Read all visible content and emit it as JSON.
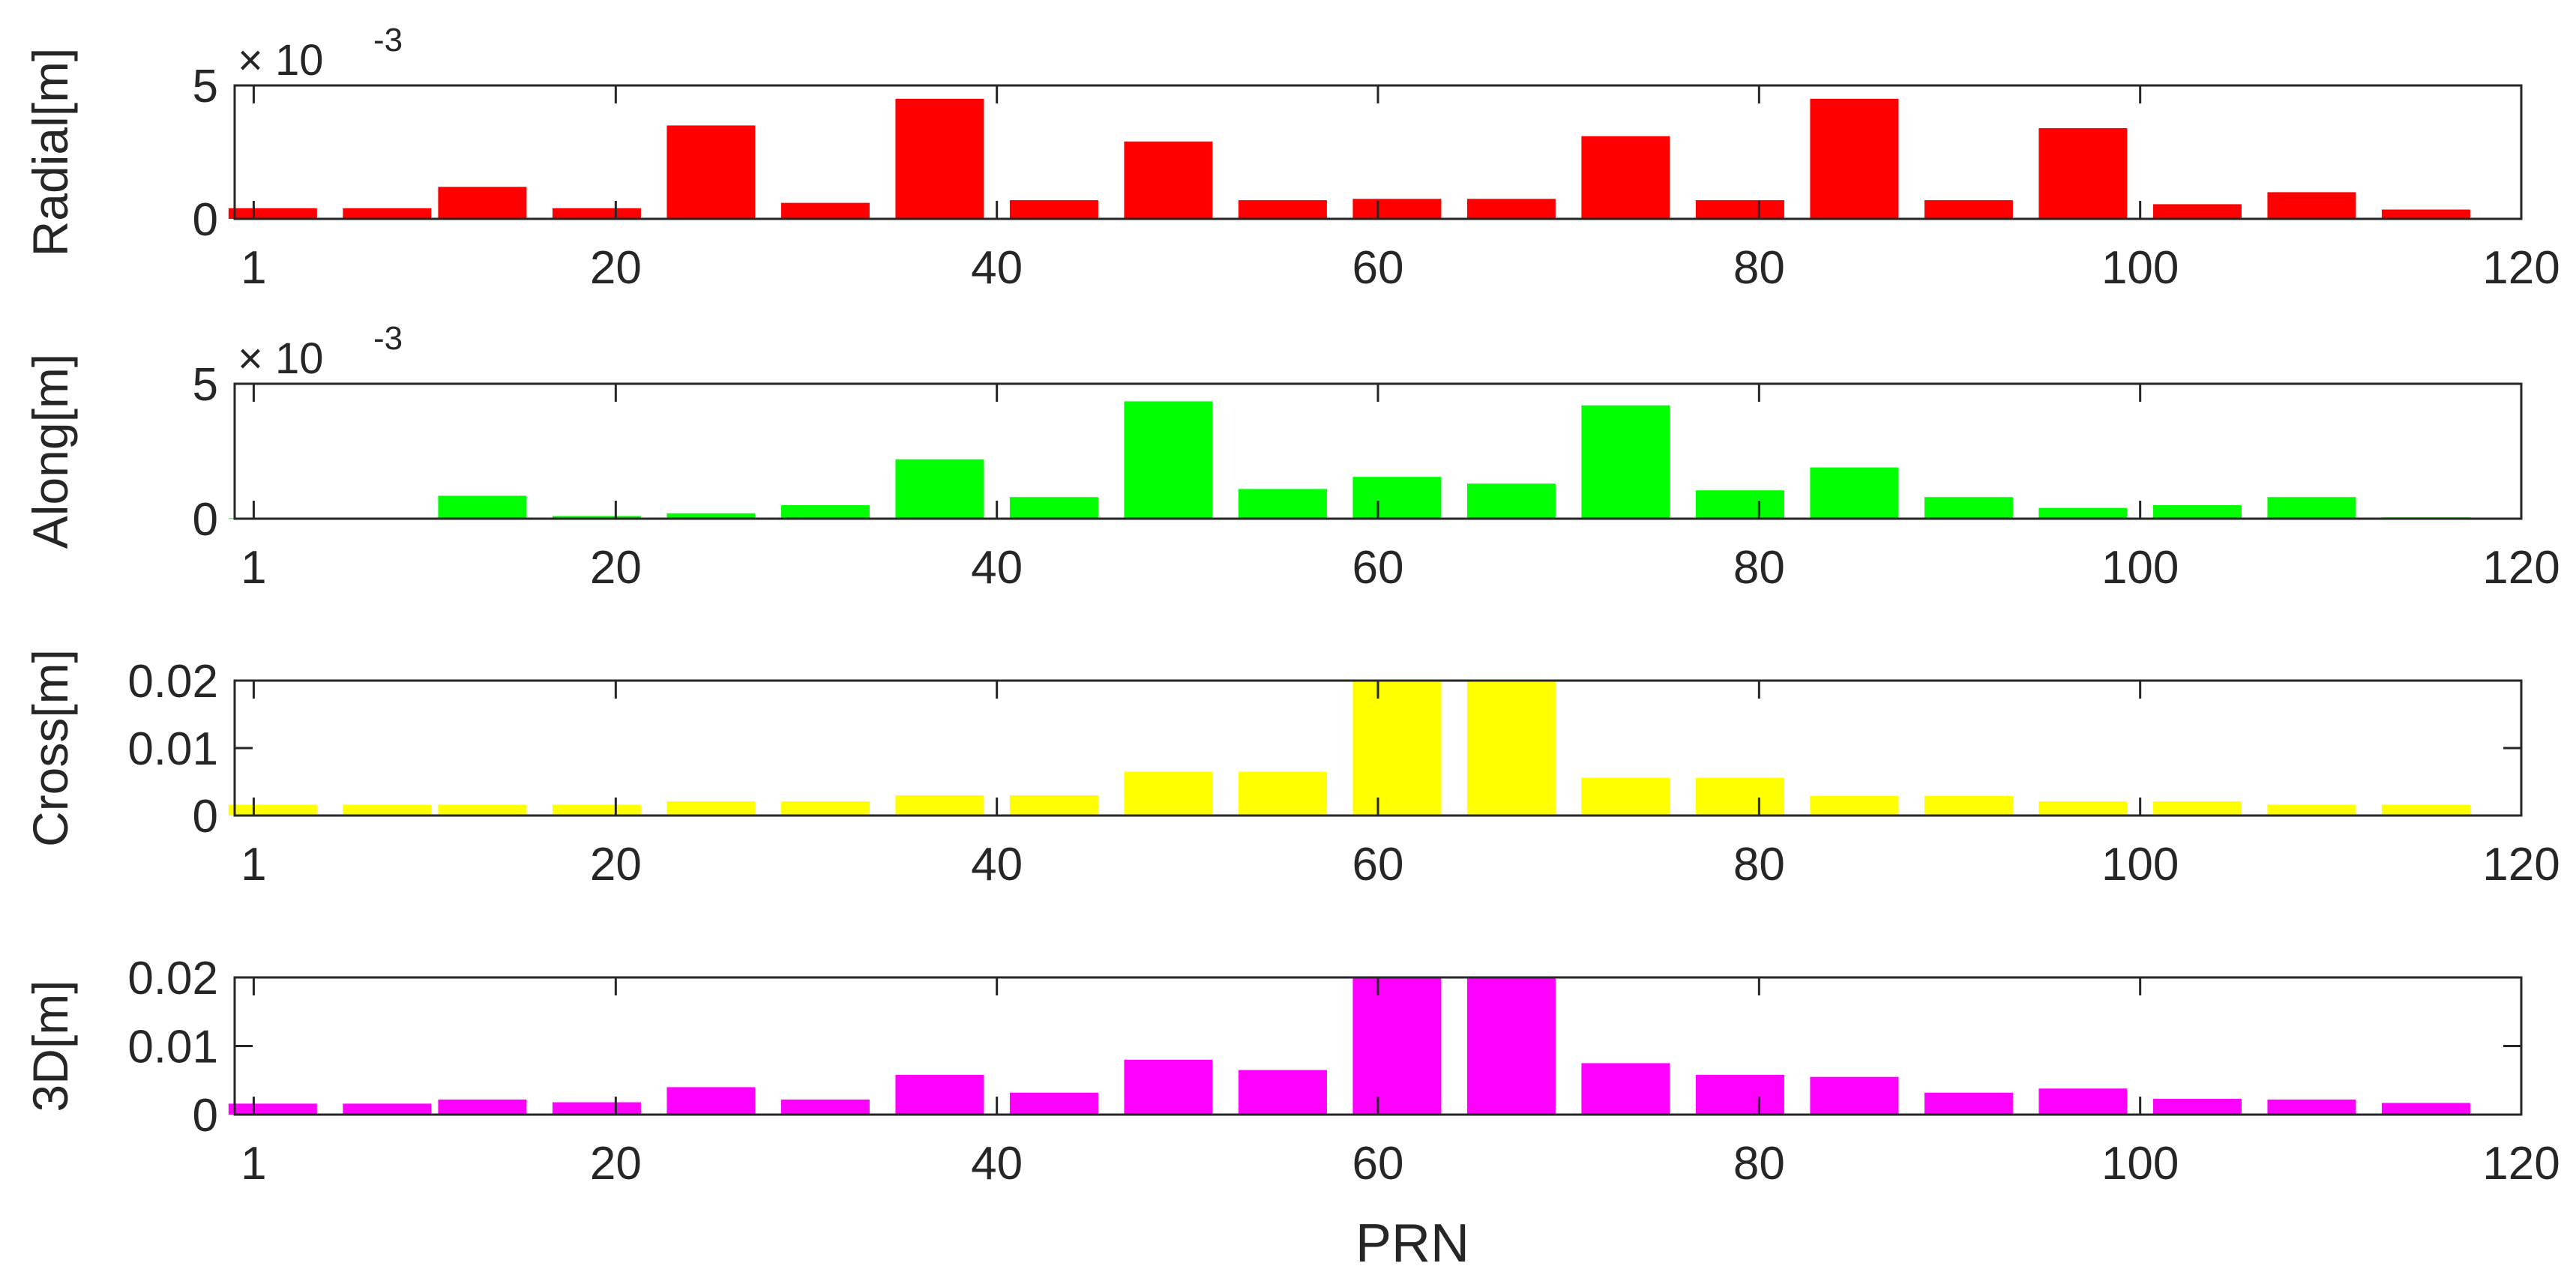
{
  "figure": {
    "xlabel": "PRN"
  },
  "chart_data": [
    {
      "type": "bar",
      "ylabel": "Radial[m]",
      "color": "#ff0000",
      "y_exponent_base": "× 10",
      "y_exponent": "-3",
      "xlim": [
        0,
        120
      ],
      "ylim": [
        0,
        5
      ],
      "xticks": [
        1,
        20,
        40,
        60,
        80,
        100,
        120
      ],
      "yticks": [
        0,
        5
      ],
      "x": [
        2,
        8,
        13,
        19,
        25,
        31,
        37,
        43,
        49,
        55,
        61,
        67,
        73,
        79,
        85,
        91,
        97,
        103,
        109,
        115
      ],
      "values": [
        0.4,
        0.4,
        1.2,
        0.4,
        3.5,
        0.6,
        4.5,
        0.7,
        2.9,
        0.7,
        0.75,
        0.75,
        3.1,
        0.7,
        4.5,
        0.7,
        3.4,
        0.55,
        1.0,
        0.35
      ]
    },
    {
      "type": "bar",
      "ylabel": "Along[m]",
      "color": "#00ff00",
      "y_exponent_base": "× 10",
      "y_exponent": "-3",
      "xlim": [
        0,
        120
      ],
      "ylim": [
        0,
        5
      ],
      "xticks": [
        1,
        20,
        40,
        60,
        80,
        100,
        120
      ],
      "yticks": [
        0,
        5
      ],
      "x": [
        2,
        8,
        13,
        19,
        25,
        31,
        37,
        43,
        49,
        55,
        61,
        67,
        73,
        79,
        85,
        91,
        97,
        103,
        109,
        115
      ],
      "values": [
        0.02,
        0.02,
        0.85,
        0.1,
        0.2,
        0.5,
        2.2,
        0.8,
        4.35,
        1.1,
        1.55,
        1.3,
        4.2,
        1.05,
        1.9,
        0.8,
        0.4,
        0.5,
        0.8,
        0.05
      ]
    },
    {
      "type": "bar",
      "ylabel": "Cross[m]",
      "color": "#ffff00",
      "xlim": [
        0,
        120
      ],
      "ylim": [
        0,
        0.02
      ],
      "xticks": [
        1,
        20,
        40,
        60,
        80,
        100,
        120
      ],
      "yticks": [
        0,
        0.01,
        0.02
      ],
      "ytick_labels": [
        "0",
        "0.01",
        "0.02"
      ],
      "x": [
        2,
        8,
        13,
        19,
        25,
        31,
        37,
        43,
        49,
        55,
        61,
        67,
        73,
        79,
        85,
        91,
        97,
        103,
        109,
        115
      ],
      "values": [
        0.0016,
        0.0016,
        0.0016,
        0.0016,
        0.0021,
        0.0021,
        0.003,
        0.003,
        0.0065,
        0.0065,
        0.02,
        0.02,
        0.0056,
        0.0056,
        0.0029,
        0.0029,
        0.0021,
        0.0021,
        0.0016,
        0.0016
      ]
    },
    {
      "type": "bar",
      "ylabel": "3D[m]",
      "color": "#ff00ff",
      "xlim": [
        0,
        120
      ],
      "ylim": [
        0,
        0.02
      ],
      "xticks": [
        1,
        20,
        40,
        60,
        80,
        100,
        120
      ],
      "yticks": [
        0,
        0.01,
        0.02
      ],
      "ytick_labels": [
        "0",
        "0.01",
        "0.02"
      ],
      "x": [
        2,
        8,
        13,
        19,
        25,
        31,
        37,
        43,
        49,
        55,
        61,
        67,
        73,
        79,
        85,
        91,
        97,
        103,
        109,
        115
      ],
      "values": [
        0.0016,
        0.0016,
        0.0022,
        0.0018,
        0.004,
        0.0022,
        0.0058,
        0.0032,
        0.008,
        0.0065,
        0.02,
        0.02,
        0.0075,
        0.0058,
        0.0055,
        0.0032,
        0.0038,
        0.0023,
        0.0022,
        0.0017
      ]
    }
  ]
}
